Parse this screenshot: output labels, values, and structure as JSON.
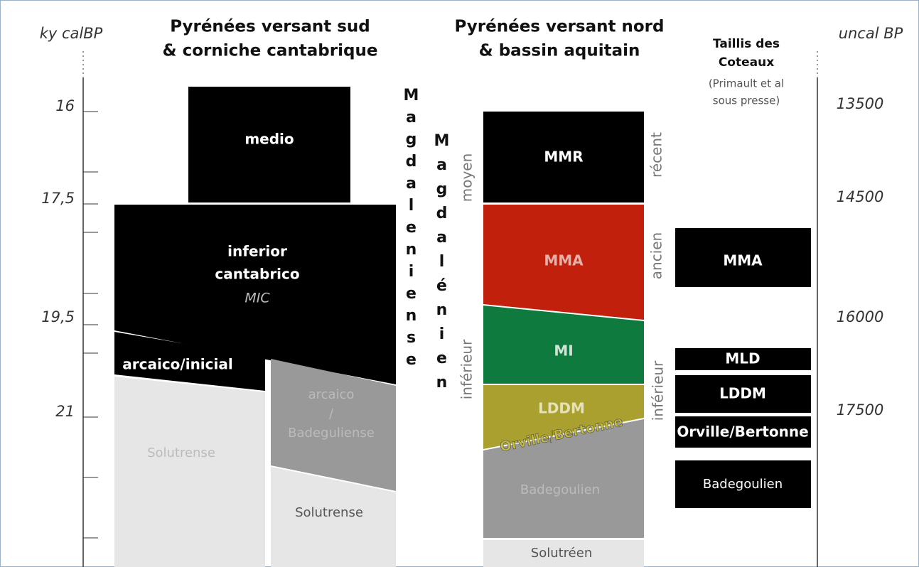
{
  "axis_left": {
    "label": "ky calBP",
    "ticks": [
      "16",
      "17,5",
      "19,5",
      "21"
    ]
  },
  "axis_right": {
    "label": "uncal BP",
    "ticks": [
      "13500",
      "14500",
      "16000",
      "17500"
    ]
  },
  "south": {
    "title": [
      "Pyrénées versant sud",
      "& corniche cantabrique"
    ],
    "culture": "Magdaleniense",
    "blocks": [
      {
        "label": [
          "medio"
        ]
      },
      {
        "label": [
          "inferior",
          "cantabrico",
          "MIC"
        ]
      },
      {
        "label": [
          "arcaico/inicial"
        ]
      },
      {
        "label": [
          "Solutrense"
        ]
      },
      {
        "label": [
          "arcaico",
          "/",
          "Badeguliense"
        ]
      },
      {
        "label": [
          "Solutrense"
        ]
      }
    ]
  },
  "north": {
    "title": [
      "Pyrénées versant nord",
      "& bassin aquitain"
    ],
    "culture": "Magdalénien",
    "phases": [
      "moyen",
      "inférieur"
    ],
    "subphases": [
      "récent",
      "ancien",
      "inférieur"
    ],
    "blocks": [
      {
        "label": "MMR"
      },
      {
        "label": "MMA"
      },
      {
        "label": "MI"
      },
      {
        "label": "LDDM"
      },
      {
        "label": "Orville/Bertonne"
      },
      {
        "label": "Badegoulien"
      },
      {
        "label": "Solutréen"
      }
    ]
  },
  "coteaux": {
    "title": [
      "Taillis des",
      "Coteaux"
    ],
    "note": [
      "(Primault et al",
      "sous presse)"
    ],
    "blocks": [
      "MMA",
      "MLD",
      "LDDM",
      "Orville/Bertonne",
      "Badegoulien"
    ]
  }
}
